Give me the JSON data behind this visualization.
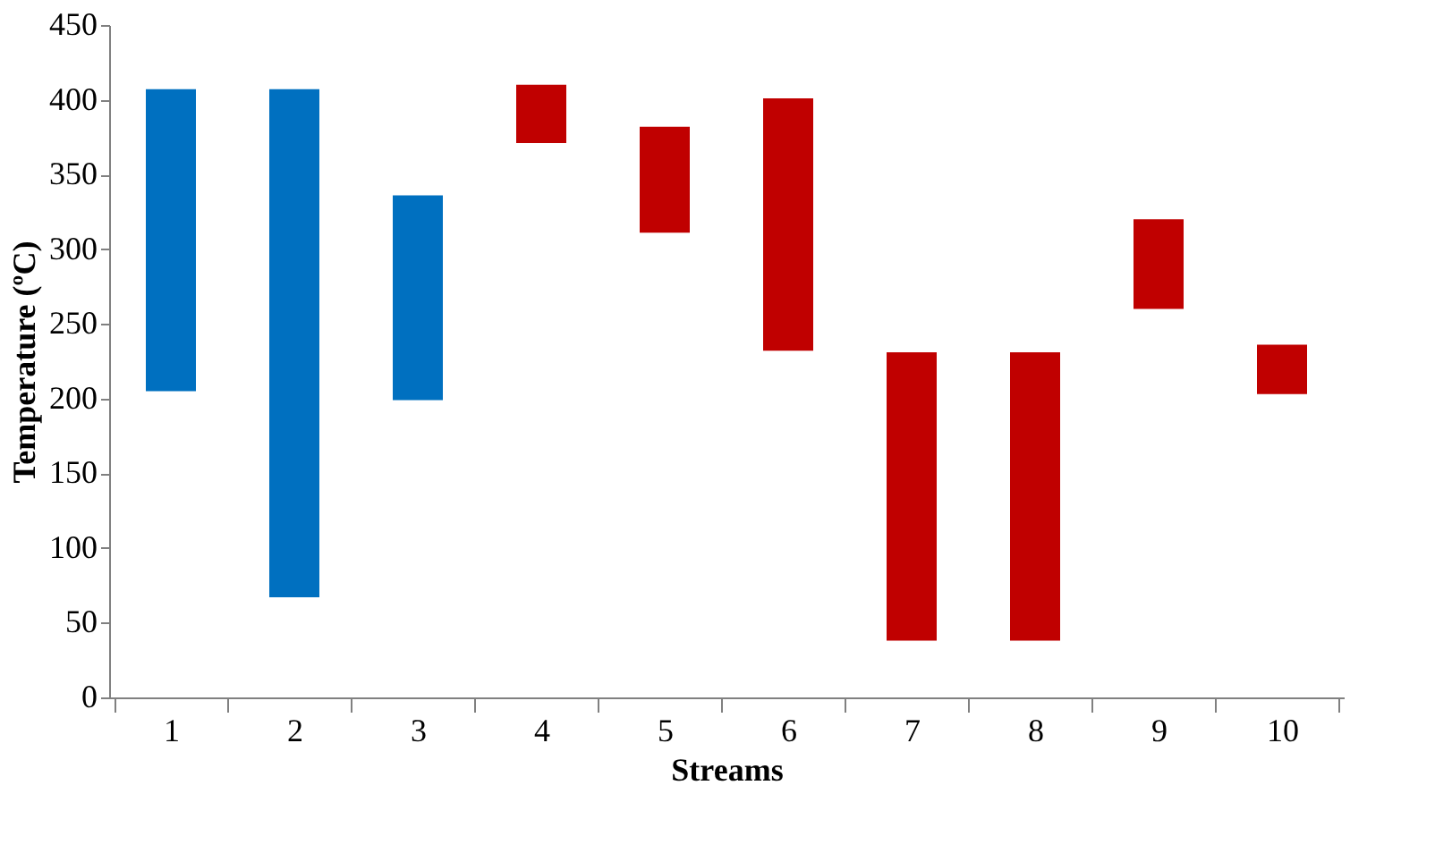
{
  "chart_data": {
    "type": "bar",
    "xlabel": "Streams",
    "ylabel": "Temperature (ºC)",
    "categories": [
      "1",
      "2",
      "3",
      "4",
      "5",
      "6",
      "7",
      "8",
      "9",
      "10"
    ],
    "base": [
      205,
      67,
      199,
      371,
      311,
      232,
      38,
      38,
      260,
      203
    ],
    "values": [
      202,
      340,
      137,
      39,
      71,
      169,
      193,
      193,
      60,
      33
    ],
    "colors": [
      "#0070c0",
      "#0070c0",
      "#0070c0",
      "#c00000",
      "#c00000",
      "#c00000",
      "#c00000",
      "#c00000",
      "#c00000",
      "#c00000"
    ],
    "ylim": [
      0,
      450
    ],
    "yticks": [
      0,
      50,
      100,
      150,
      200,
      250,
      300,
      350,
      400,
      450
    ],
    "grid": false
  }
}
